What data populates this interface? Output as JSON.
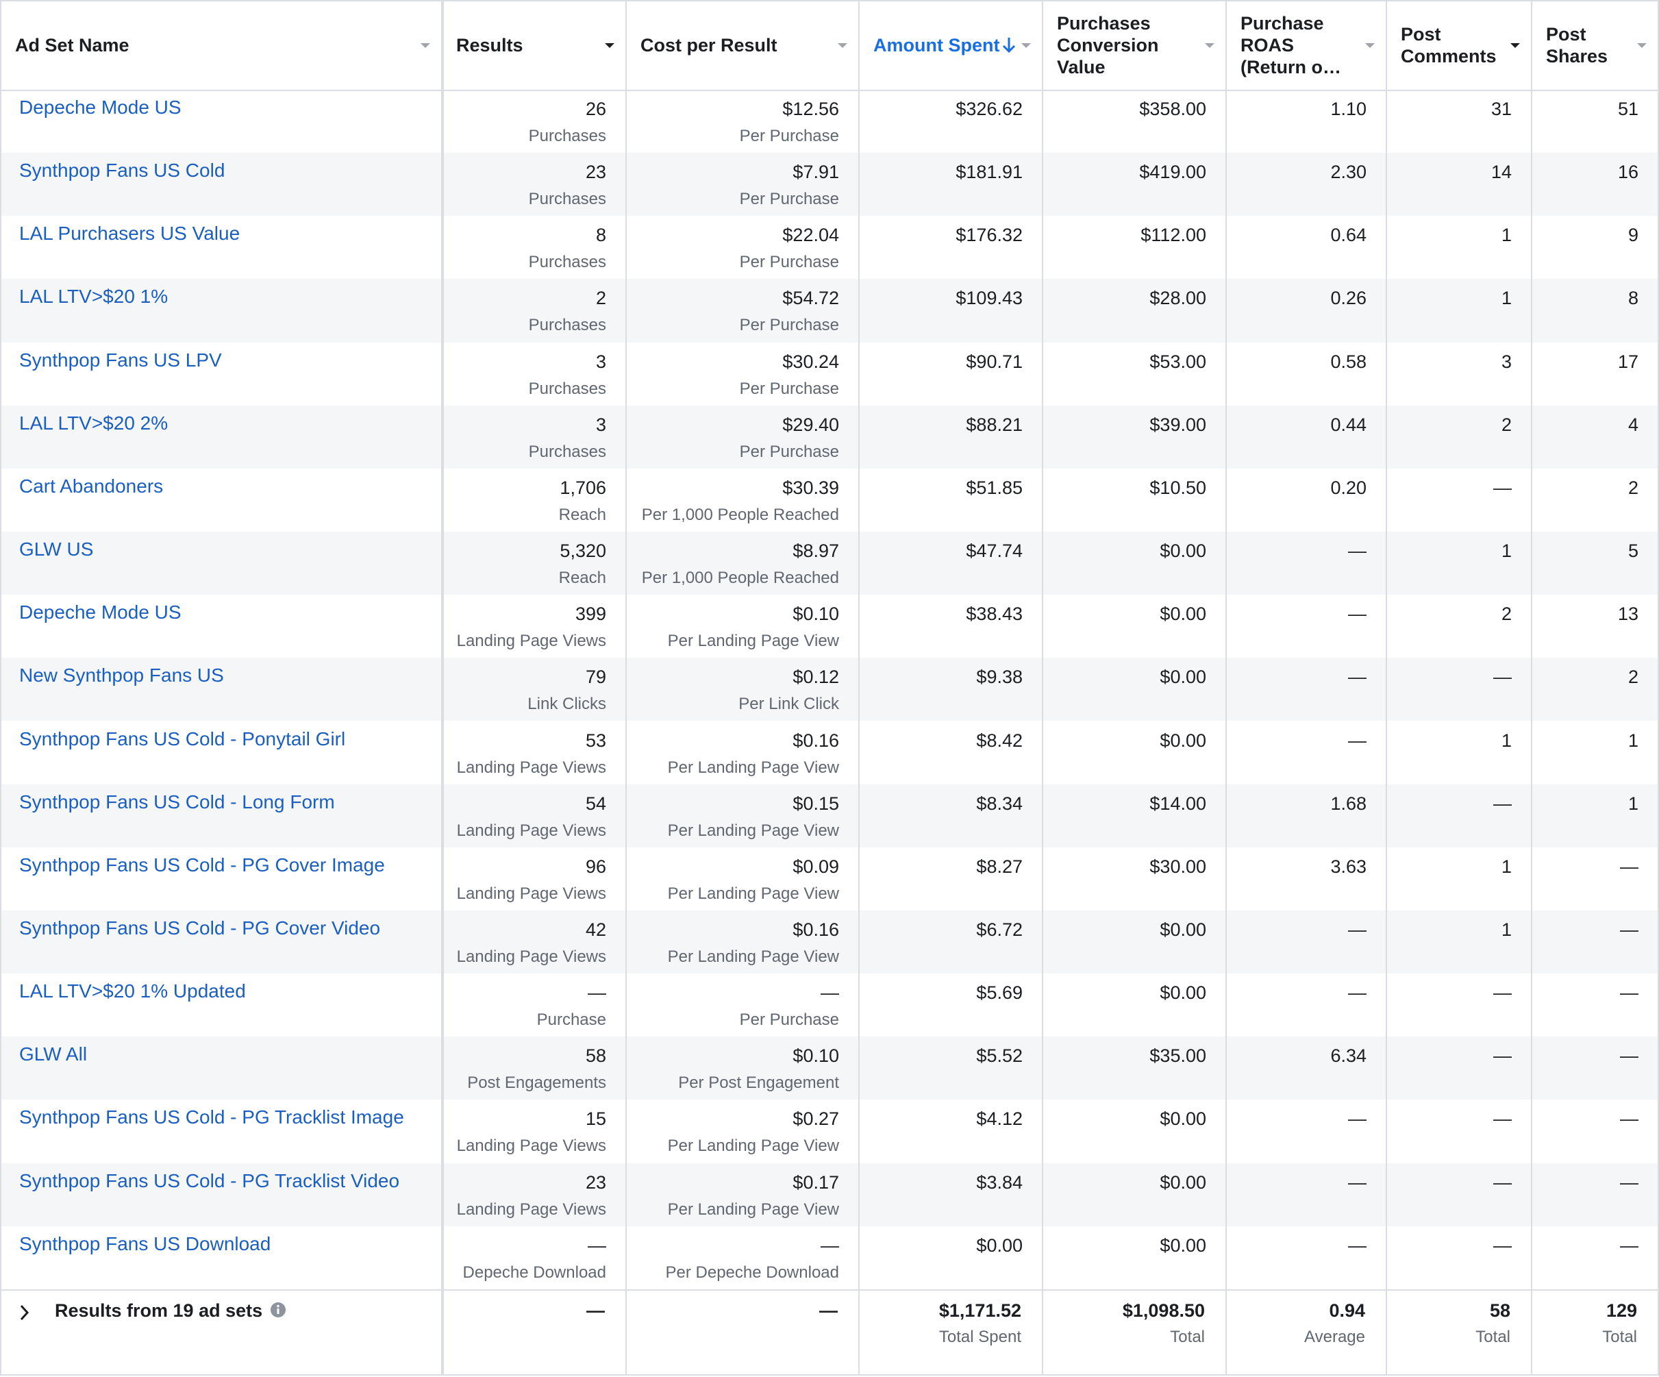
{
  "table": {
    "columns": [
      "Ad Set Name",
      "Results",
      "Cost per Result",
      "Amount Spent",
      "Purchases Conversion Value",
      "Purchase ROAS (Return o…",
      "Post Comments",
      "Post Shares"
    ],
    "rows": [
      [
        "Depeche Mode US",
        "26",
        "Purchases",
        "$12.56",
        "Per Purchase",
        "$326.62",
        "$358.00",
        "1.10",
        "31",
        "51"
      ],
      [
        "Synthpop Fans US Cold",
        "23",
        "Purchases",
        "$7.91",
        "Per Purchase",
        "$181.91",
        "$419.00",
        "2.30",
        "14",
        "16"
      ],
      [
        "LAL Purchasers US Value",
        "8",
        "Purchases",
        "$22.04",
        "Per Purchase",
        "$176.32",
        "$112.00",
        "0.64",
        "1",
        "9"
      ],
      [
        "LAL LTV>$20 1%",
        "2",
        "Purchases",
        "$54.72",
        "Per Purchase",
        "$109.43",
        "$28.00",
        "0.26",
        "1",
        "8"
      ],
      [
        "Synthpop Fans US LPV",
        "3",
        "Purchases",
        "$30.24",
        "Per Purchase",
        "$90.71",
        "$53.00",
        "0.58",
        "3",
        "17"
      ],
      [
        "LAL LTV>$20 2%",
        "3",
        "Purchases",
        "$29.40",
        "Per Purchase",
        "$88.21",
        "$39.00",
        "0.44",
        "2",
        "4"
      ],
      [
        "Cart Abandoners",
        "1,706",
        "Reach",
        "$30.39",
        "Per 1,000 People Reached",
        "$51.85",
        "$10.50",
        "0.20",
        "—",
        "2"
      ],
      [
        "GLW US",
        "5,320",
        "Reach",
        "$8.97",
        "Per 1,000 People Reached",
        "$47.74",
        "$0.00",
        "—",
        "1",
        "5"
      ],
      [
        "Depeche Mode US",
        "399",
        "Landing Page Views",
        "$0.10",
        "Per Landing Page View",
        "$38.43",
        "$0.00",
        "—",
        "2",
        "13"
      ],
      [
        "New Synthpop Fans US",
        "79",
        "Link Clicks",
        "$0.12",
        "Per Link Click",
        "$9.38",
        "$0.00",
        "—",
        "—",
        "2"
      ],
      [
        "Synthpop Fans US Cold - Ponytail Girl",
        "53",
        "Landing Page Views",
        "$0.16",
        "Per Landing Page View",
        "$8.42",
        "$0.00",
        "—",
        "1",
        "1"
      ],
      [
        "Synthpop Fans US Cold - Long Form",
        "54",
        "Landing Page Views",
        "$0.15",
        "Per Landing Page View",
        "$8.34",
        "$14.00",
        "1.68",
        "—",
        "1"
      ],
      [
        "Synthpop Fans US Cold - PG Cover Image",
        "96",
        "Landing Page Views",
        "$0.09",
        "Per Landing Page View",
        "$8.27",
        "$30.00",
        "3.63",
        "1",
        "—"
      ],
      [
        "Synthpop Fans US Cold - PG Cover Video",
        "42",
        "Landing Page Views",
        "$0.16",
        "Per Landing Page View",
        "$6.72",
        "$0.00",
        "—",
        "1",
        "—"
      ],
      [
        "LAL LTV>$20 1% Updated",
        "—",
        "Purchase",
        "—",
        "Per Purchase",
        "$5.69",
        "$0.00",
        "—",
        "—",
        "—"
      ],
      [
        "GLW All",
        "58",
        "Post Engagements",
        "$0.10",
        "Per Post Engagement",
        "$5.52",
        "$35.00",
        "6.34",
        "—",
        "—"
      ],
      [
        "Synthpop Fans US Cold - PG Tracklist Image",
        "15",
        "Landing Page Views",
        "$0.27",
        "Per Landing Page View",
        "$4.12",
        "$0.00",
        "—",
        "—",
        "—"
      ],
      [
        "Synthpop Fans US Cold - PG Tracklist Video",
        "23",
        "Landing Page Views",
        "$0.17",
        "Per Landing Page View",
        "$3.84",
        "$0.00",
        "—",
        "—",
        "—"
      ],
      [
        "Synthpop Fans US Download",
        "—",
        "Depeche Download",
        "—",
        "Per Depeche Download",
        "$0.00",
        "$0.00",
        "—",
        "—",
        "—"
      ]
    ],
    "footer": {
      "label": "Results from 19 ad sets",
      "results": "—",
      "cost": "—",
      "amount_spent": [
        "$1,171.52",
        "Total Spent"
      ],
      "conversion_value": [
        "$1,098.50",
        "Total"
      ],
      "roas": [
        "0.94",
        "Average"
      ],
      "comments": [
        "58",
        "Total"
      ],
      "shares": [
        "129",
        "Total"
      ]
    }
  }
}
